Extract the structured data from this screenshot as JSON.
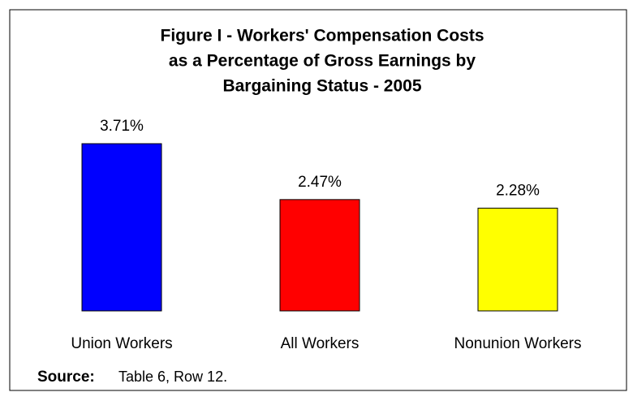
{
  "chart_data": {
    "type": "bar",
    "title": [
      "Figure I - Workers' Compensation Costs",
      "as a Percentage of Gross Earnings by",
      "Bargaining Status - 2005"
    ],
    "categories": [
      "Union Workers",
      "All Workers",
      "Nonunion Workers"
    ],
    "values": [
      3.71,
      2.47,
      2.28
    ],
    "value_labels": [
      "3.71%",
      "2.47%",
      "2.28%"
    ],
    "colors": [
      "#0000ff",
      "#ff0000",
      "#ffff00"
    ],
    "source_label": "Source:",
    "source": "Table 6, Row 12."
  }
}
